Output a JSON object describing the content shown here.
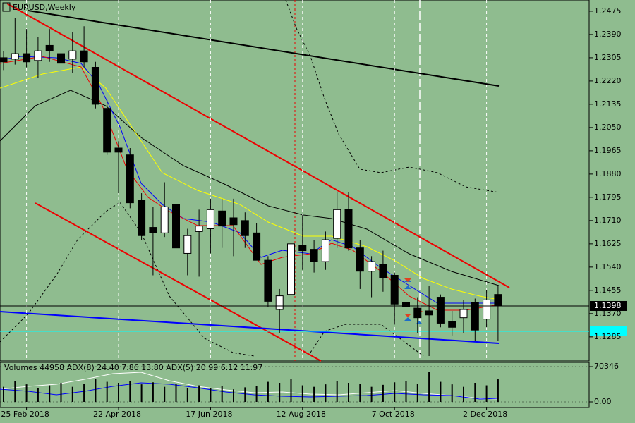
{
  "chart_data": [
    {
      "type": "candlestick",
      "title": "EURUSD,Weekly",
      "bull_color": "#ffffff",
      "bear_color": "#000000",
      "categories": [
        null,
        null,
        "25 Feb 2018",
        null,
        null,
        null,
        null,
        null,
        null,
        null,
        "22 Apr 2018",
        null,
        null,
        null,
        null,
        null,
        null,
        null,
        "17 Jun 2018",
        null,
        null,
        null,
        null,
        null,
        null,
        null,
        "12 Aug 2018",
        null,
        null,
        null,
        null,
        null,
        null,
        null,
        "7 Oct 2018",
        null,
        null,
        null,
        null,
        null,
        null,
        null,
        "2 Dec 2018",
        null
      ],
      "open": [
        1.2305,
        1.23,
        1.232,
        1.2295,
        1.235,
        1.232,
        1.23,
        1.233,
        1.227,
        1.212,
        1.1975,
        1.195,
        1.1785,
        1.1685,
        1.1665,
        1.177,
        1.159,
        1.167,
        1.168,
        1.1745,
        1.172,
        1.171,
        1.1665,
        1.1565,
        1.1385,
        1.144,
        1.162,
        1.1605,
        1.156,
        1.1645,
        1.175,
        1.161,
        1.1525,
        1.155,
        1.151,
        1.141,
        1.139,
        1.138,
        1.143,
        1.134,
        1.1355,
        1.141,
        1.135,
        1.144
      ],
      "high": [
        1.233,
        1.245,
        1.241,
        1.238,
        1.241,
        1.241,
        1.24,
        1.242,
        1.229,
        1.215,
        1.2,
        1.1975,
        1.181,
        1.176,
        1.185,
        1.183,
        1.168,
        1.175,
        1.179,
        1.179,
        1.179,
        1.174,
        1.17,
        1.158,
        1.146,
        1.164,
        1.173,
        1.164,
        1.167,
        1.1815,
        1.1815,
        1.164,
        1.158,
        1.16,
        1.152,
        1.147,
        1.143,
        1.147,
        1.144,
        1.138,
        1.142,
        1.1425,
        1.1455,
        1.147
      ],
      "low": [
        1.226,
        1.228,
        1.227,
        1.223,
        1.229,
        1.221,
        1.225,
        1.227,
        1.212,
        1.195,
        1.181,
        1.1755,
        1.164,
        1.151,
        1.165,
        1.159,
        1.151,
        1.1505,
        1.159,
        1.161,
        1.158,
        1.161,
        1.157,
        1.1395,
        1.13,
        1.141,
        1.153,
        1.152,
        1.153,
        1.161,
        1.16,
        1.146,
        1.143,
        1.145,
        1.133,
        1.13,
        1.13,
        1.1215,
        1.132,
        1.129,
        1.13,
        1.127,
        1.132,
        1.127
      ],
      "close": [
        1.229,
        1.232,
        1.229,
        1.233,
        1.233,
        1.2285,
        1.233,
        1.229,
        1.2135,
        1.196,
        1.196,
        1.1775,
        1.1655,
        1.1665,
        1.176,
        1.161,
        1.1655,
        1.169,
        1.175,
        1.169,
        1.1695,
        1.1655,
        1.1565,
        1.1415,
        1.1435,
        1.1625,
        1.16,
        1.156,
        1.164,
        1.175,
        1.161,
        1.1525,
        1.156,
        1.15,
        1.1405,
        1.1395,
        1.1355,
        1.1365,
        1.1335,
        1.132,
        1.1385,
        1.131,
        1.142,
        1.1398
      ],
      "ylim": [
        1.1197,
        1.2516
      ],
      "yticks": [
        1.2475,
        {
          "value": 1.239,
          "label": "1.2390"
        },
        1.2305,
        {
          "value": 1.222,
          "label": "1.2220"
        },
        1.2135,
        {
          "value": 1.205,
          "label": "1.2050"
        },
        1.1965,
        {
          "value": 1.188,
          "label": "1.1880"
        },
        1.1795,
        {
          "value": 1.171,
          "label": "1.1710"
        },
        1.1625,
        {
          "value": 1.154,
          "label": "1.1540"
        },
        1.1455,
        {
          "value": 1.137,
          "label": "1.1370"
        },
        1.1285
      ],
      "last_price": 1.1398
    },
    {
      "type": "bar",
      "title": "Volumes 44958 ADX(8) 24.40 7.86 13.80 ADX(5) 20.99 6.12 11.97",
      "color": "#000000",
      "values": [
        30000,
        42000,
        35000,
        28000,
        33000,
        38000,
        30000,
        36000,
        45000,
        40000,
        38000,
        42000,
        35000,
        39000,
        30000,
        36000,
        28000,
        33000,
        27000,
        31000,
        25000,
        29000,
        32000,
        40000,
        38000,
        45000,
        33000,
        30000,
        35000,
        41000,
        38000,
        36000,
        30000,
        34000,
        39000,
        42000,
        36000,
        60000,
        40000,
        35000,
        30000,
        38000,
        33000,
        44958
      ],
      "ylim": [
        0,
        70346
      ],
      "yticks": [
        70346,
        {
          "value": 0,
          "label": "0.00"
        }
      ]
    }
  ]
}
